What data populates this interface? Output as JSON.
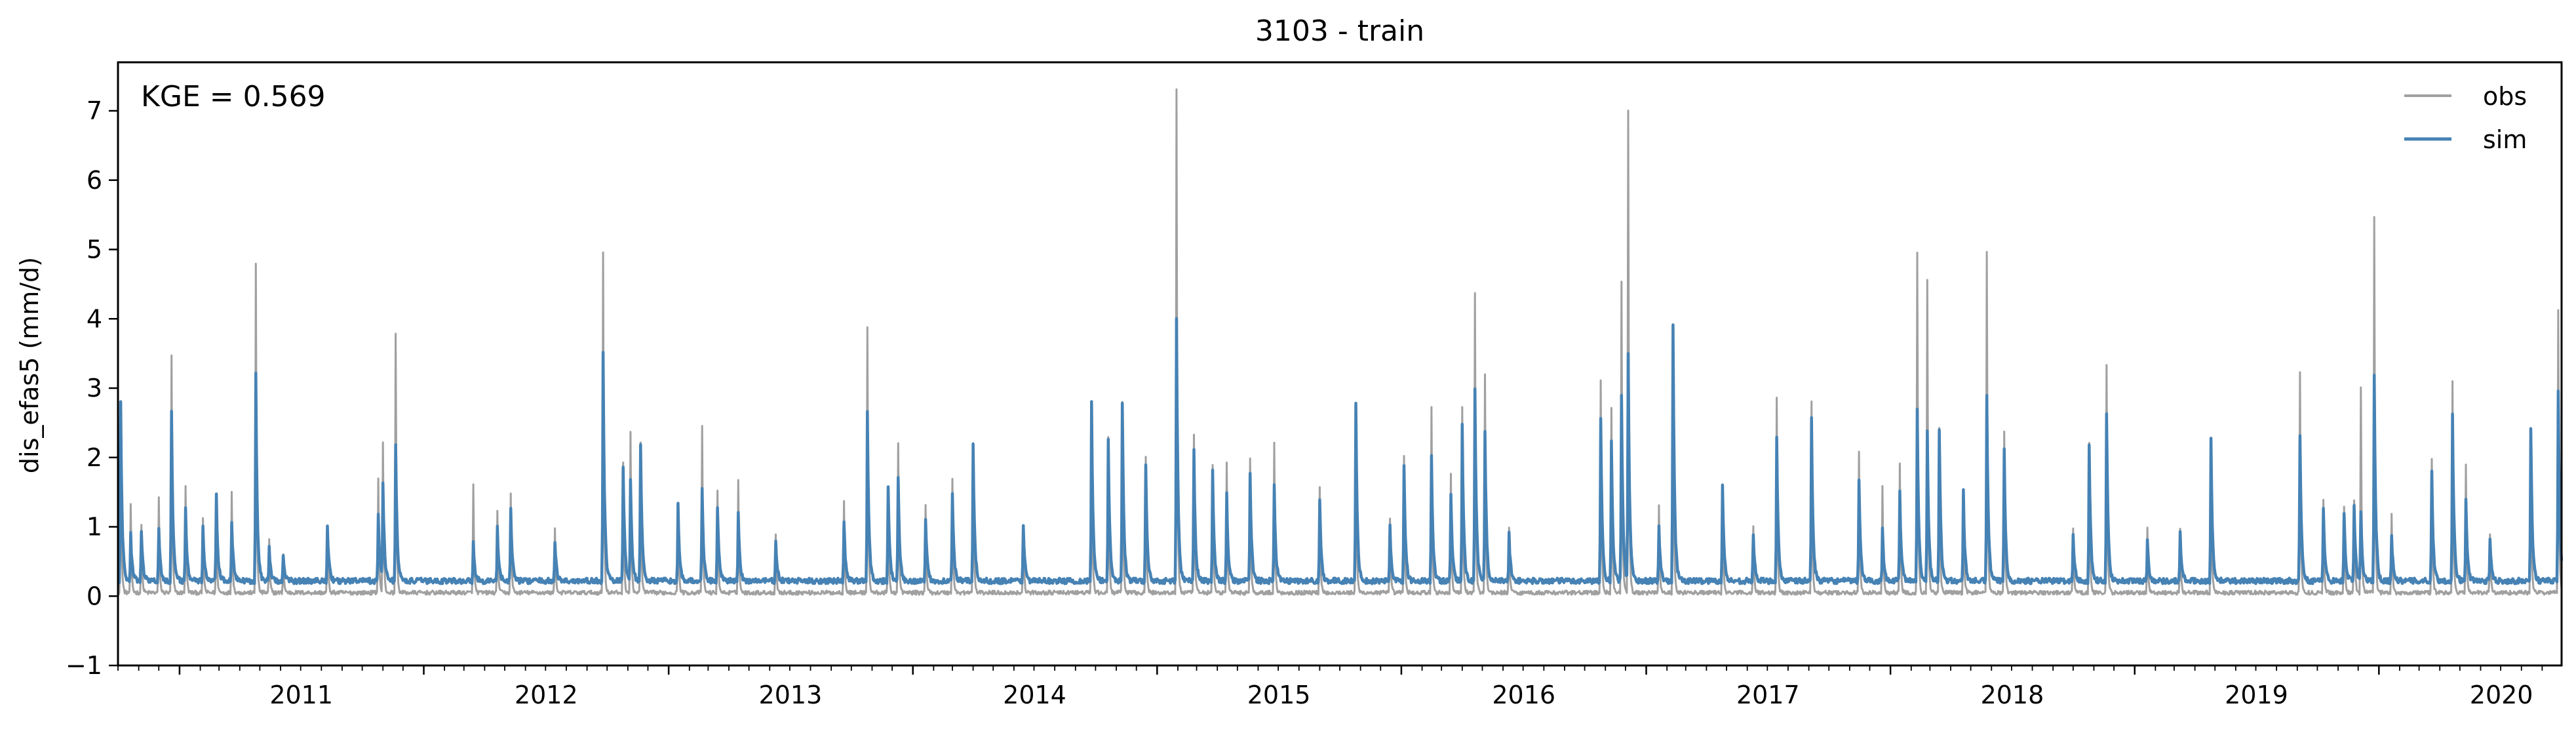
{
  "chart_data": {
    "type": "line",
    "title": "3103 - train",
    "xlabel": "",
    "ylabel": "dis_efas5 (mm/d)",
    "xlim": [
      "2010-10-01",
      "2020-09-30"
    ],
    "ylim": [
      -1,
      7.7
    ],
    "yticks": [
      -1,
      0,
      1,
      2,
      3,
      4,
      5,
      6,
      7
    ],
    "xticks": [
      "2011",
      "2012",
      "2013",
      "2014",
      "2015",
      "2016",
      "2017",
      "2018",
      "2019",
      "2020"
    ],
    "annotation": "KGE = 0.569",
    "legend": {
      "placement": "top-right",
      "entries": [
        "obs",
        "sim"
      ]
    },
    "grid": false,
    "colors": {
      "obs": "#a0a0a0",
      "sim": "#4682b4"
    },
    "series": [
      {
        "name": "obs",
        "baseline": 0.05,
        "peaks": [
          [
            "2010-10-05",
            2.6
          ],
          [
            "2010-10-20",
            1.3
          ],
          [
            "2010-11-05",
            1.0
          ],
          [
            "2010-12-01",
            1.4
          ],
          [
            "2010-12-20",
            3.45
          ],
          [
            "2011-01-10",
            1.6
          ],
          [
            "2011-02-05",
            1.1
          ],
          [
            "2011-02-25",
            1.2
          ],
          [
            "2011-03-20",
            1.5
          ],
          [
            "2011-04-25",
            4.8
          ],
          [
            "2011-05-15",
            0.8
          ],
          [
            "2011-06-05",
            0.6
          ],
          [
            "2011-08-10",
            1.0
          ],
          [
            "2011-10-25",
            1.7
          ],
          [
            "2011-11-01",
            2.2
          ],
          [
            "2011-11-20",
            3.8
          ],
          [
            "2012-03-15",
            1.6
          ],
          [
            "2012-04-20",
            1.2
          ],
          [
            "2012-05-10",
            1.5
          ],
          [
            "2012-07-15",
            1.0
          ],
          [
            "2012-09-25",
            4.95
          ],
          [
            "2012-10-25",
            1.9
          ],
          [
            "2012-11-05",
            2.35
          ],
          [
            "2012-11-20",
            2.2
          ],
          [
            "2013-01-15",
            1.3
          ],
          [
            "2013-02-20",
            2.45
          ],
          [
            "2013-03-15",
            1.5
          ],
          [
            "2013-04-15",
            1.7
          ],
          [
            "2013-06-10",
            0.9
          ],
          [
            "2013-09-20",
            1.4
          ],
          [
            "2013-10-25",
            3.9
          ],
          [
            "2013-11-25",
            1.5
          ],
          [
            "2013-12-10",
            2.2
          ],
          [
            "2014-01-20",
            1.3
          ],
          [
            "2014-03-01",
            1.7
          ],
          [
            "2014-04-01",
            2.2
          ],
          [
            "2014-06-15",
            1.0
          ],
          [
            "2014-09-25",
            2.7
          ],
          [
            "2014-10-20",
            2.3
          ],
          [
            "2014-11-10",
            2.8
          ],
          [
            "2014-12-15",
            2.0
          ],
          [
            "2015-01-30",
            7.3
          ],
          [
            "2015-02-25",
            2.3
          ],
          [
            "2015-03-25",
            1.9
          ],
          [
            "2015-04-15",
            1.9
          ],
          [
            "2015-05-20",
            2.0
          ],
          [
            "2015-06-25",
            2.2
          ],
          [
            "2015-09-01",
            1.6
          ],
          [
            "2015-10-25",
            2.75
          ],
          [
            "2015-12-15",
            1.1
          ],
          [
            "2016-01-05",
            2.0
          ],
          [
            "2016-02-15",
            2.7
          ],
          [
            "2016-03-15",
            1.75
          ],
          [
            "2016-04-01",
            2.75
          ],
          [
            "2016-04-20",
            4.4
          ],
          [
            "2016-05-05",
            3.2
          ],
          [
            "2016-06-10",
            1.0
          ],
          [
            "2016-10-25",
            3.1
          ],
          [
            "2016-11-10",
            2.7
          ],
          [
            "2016-11-25",
            4.55
          ],
          [
            "2016-12-05",
            7.0
          ],
          [
            "2017-01-20",
            1.3
          ],
          [
            "2017-02-10",
            3.95
          ],
          [
            "2017-04-25",
            1.6
          ],
          [
            "2017-06-10",
            1.0
          ],
          [
            "2017-07-15",
            2.85
          ],
          [
            "2017-09-05",
            2.8
          ],
          [
            "2017-11-15",
            2.1
          ],
          [
            "2017-12-20",
            1.6
          ],
          [
            "2018-01-15",
            1.9
          ],
          [
            "2018-02-10",
            4.95
          ],
          [
            "2018-02-25",
            4.55
          ],
          [
            "2018-03-15",
            2.4
          ],
          [
            "2018-04-20",
            1.5
          ],
          [
            "2018-05-25",
            4.95
          ],
          [
            "2018-06-20",
            2.4
          ],
          [
            "2018-10-01",
            1.0
          ],
          [
            "2018-10-25",
            2.2
          ],
          [
            "2018-11-20",
            3.35
          ],
          [
            "2019-01-20",
            1.0
          ],
          [
            "2019-03-10",
            1.0
          ],
          [
            "2019-04-25",
            2.25
          ],
          [
            "2019-09-05",
            3.25
          ],
          [
            "2019-10-10",
            1.4
          ],
          [
            "2019-11-10",
            1.3
          ],
          [
            "2019-11-25",
            1.4
          ],
          [
            "2019-12-05",
            3.0
          ],
          [
            "2019-12-25",
            5.45
          ],
          [
            "2020-01-20",
            1.2
          ],
          [
            "2020-03-20",
            2.0
          ],
          [
            "2020-04-20",
            3.1
          ],
          [
            "2020-05-10",
            1.9
          ],
          [
            "2020-06-15",
            0.9
          ],
          [
            "2020-08-15",
            2.4
          ],
          [
            "2020-09-25",
            4.1
          ]
        ]
      },
      {
        "name": "sim",
        "baseline": 0.22,
        "peaks": [
          [
            "2010-10-05",
            2.8
          ],
          [
            "2010-10-20",
            0.9
          ],
          [
            "2010-11-05",
            0.95
          ],
          [
            "2010-12-01",
            1.0
          ],
          [
            "2010-12-20",
            2.7
          ],
          [
            "2011-01-10",
            1.3
          ],
          [
            "2011-02-05",
            1.0
          ],
          [
            "2011-02-25",
            1.45
          ],
          [
            "2011-03-20",
            1.1
          ],
          [
            "2011-04-25",
            3.2
          ],
          [
            "2011-05-15",
            0.7
          ],
          [
            "2011-06-05",
            0.55
          ],
          [
            "2011-08-10",
            1.05
          ],
          [
            "2011-10-25",
            1.2
          ],
          [
            "2011-11-01",
            1.6
          ],
          [
            "2011-11-20",
            2.2
          ],
          [
            "2012-03-15",
            0.8
          ],
          [
            "2012-04-20",
            1.0
          ],
          [
            "2012-05-10",
            1.3
          ],
          [
            "2012-07-15",
            0.8
          ],
          [
            "2012-09-25",
            3.5
          ],
          [
            "2012-10-25",
            1.9
          ],
          [
            "2012-11-05",
            1.7
          ],
          [
            "2012-11-20",
            2.2
          ],
          [
            "2013-01-15",
            1.3
          ],
          [
            "2013-02-20",
            1.55
          ],
          [
            "2013-03-15",
            1.3
          ],
          [
            "2013-04-15",
            1.2
          ],
          [
            "2013-06-10",
            0.8
          ],
          [
            "2013-09-20",
            1.1
          ],
          [
            "2013-10-25",
            2.7
          ],
          [
            "2013-11-25",
            1.6
          ],
          [
            "2013-12-10",
            1.7
          ],
          [
            "2014-01-20",
            1.1
          ],
          [
            "2014-03-01",
            1.5
          ],
          [
            "2014-04-01",
            2.2
          ],
          [
            "2014-06-15",
            1.05
          ],
          [
            "2014-09-25",
            2.8
          ],
          [
            "2014-10-20",
            2.3
          ],
          [
            "2014-11-10",
            2.8
          ],
          [
            "2014-12-15",
            1.9
          ],
          [
            "2015-01-30",
            4.0
          ],
          [
            "2015-02-25",
            2.1
          ],
          [
            "2015-03-25",
            1.8
          ],
          [
            "2015-04-15",
            1.5
          ],
          [
            "2015-05-20",
            1.8
          ],
          [
            "2015-06-25",
            1.6
          ],
          [
            "2015-09-01",
            1.4
          ],
          [
            "2015-10-25",
            2.75
          ],
          [
            "2015-12-15",
            1.0
          ],
          [
            "2016-01-05",
            1.9
          ],
          [
            "2016-02-15",
            2.0
          ],
          [
            "2016-03-15",
            1.5
          ],
          [
            "2016-04-01",
            2.5
          ],
          [
            "2016-04-20",
            2.95
          ],
          [
            "2016-05-05",
            2.4
          ],
          [
            "2016-06-10",
            0.9
          ],
          [
            "2016-10-25",
            2.6
          ],
          [
            "2016-11-10",
            2.2
          ],
          [
            "2016-11-25",
            2.9
          ],
          [
            "2016-12-05",
            3.5
          ],
          [
            "2017-01-20",
            1.0
          ],
          [
            "2017-02-10",
            3.95
          ],
          [
            "2017-04-25",
            1.6
          ],
          [
            "2017-06-10",
            0.9
          ],
          [
            "2017-07-15",
            2.3
          ],
          [
            "2017-09-05",
            2.55
          ],
          [
            "2017-11-15",
            1.7
          ],
          [
            "2017-12-20",
            1.0
          ],
          [
            "2018-01-15",
            1.5
          ],
          [
            "2018-02-10",
            2.7
          ],
          [
            "2018-02-25",
            2.4
          ],
          [
            "2018-03-15",
            2.4
          ],
          [
            "2018-04-20",
            1.5
          ],
          [
            "2018-05-25",
            2.9
          ],
          [
            "2018-06-20",
            2.1
          ],
          [
            "2018-10-01",
            0.9
          ],
          [
            "2018-10-25",
            2.2
          ],
          [
            "2018-11-20",
            2.65
          ],
          [
            "2019-01-20",
            0.8
          ],
          [
            "2019-03-10",
            0.9
          ],
          [
            "2019-04-25",
            2.25
          ],
          [
            "2019-09-05",
            2.35
          ],
          [
            "2019-10-10",
            1.3
          ],
          [
            "2019-11-10",
            1.2
          ],
          [
            "2019-11-25",
            1.3
          ],
          [
            "2019-12-05",
            1.2
          ],
          [
            "2019-12-25",
            3.2
          ],
          [
            "2020-01-20",
            0.9
          ],
          [
            "2020-03-20",
            1.8
          ],
          [
            "2020-04-20",
            2.65
          ],
          [
            "2020-05-10",
            1.4
          ],
          [
            "2020-06-15",
            0.8
          ],
          [
            "2020-08-15",
            2.45
          ],
          [
            "2020-09-25",
            2.95
          ]
        ]
      }
    ]
  }
}
